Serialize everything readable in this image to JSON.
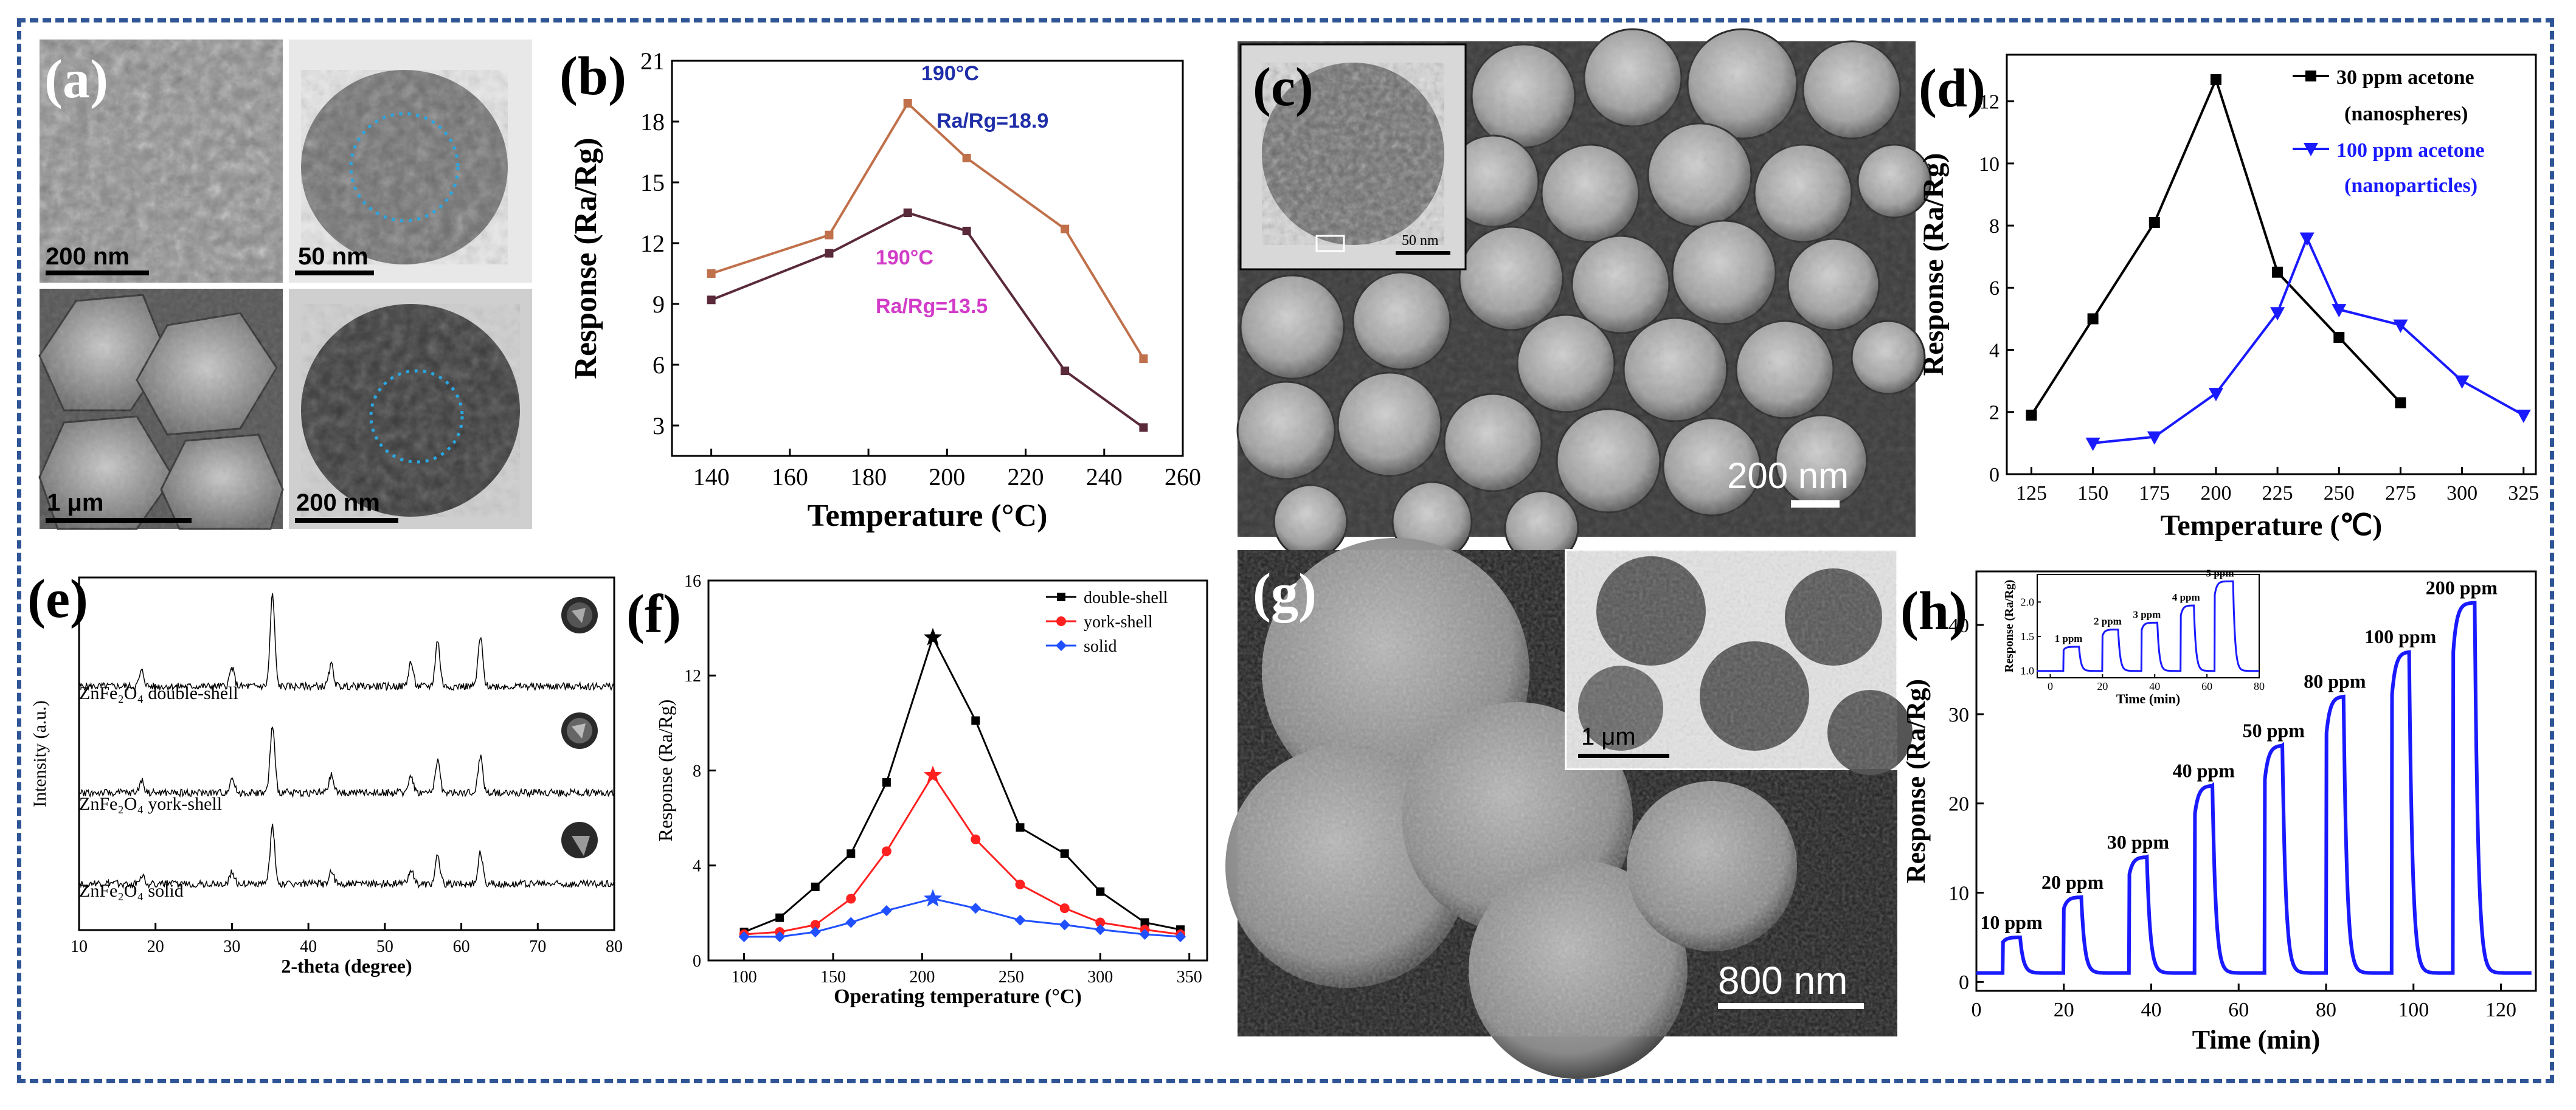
{
  "figure": {
    "frame_color": "#2f5597"
  },
  "panel_a": {
    "label": "(a)",
    "scalebars": [
      "200 nm",
      "50 nm",
      "1 μm",
      "200 nm"
    ]
  },
  "panel_b": {
    "label": "(b)",
    "annotations": [
      "190°C",
      "Ra/Rg=18.9",
      "190°C",
      "Ra/Rg=13.5"
    ]
  },
  "panel_c": {
    "label": "(c)",
    "scalebars": [
      "50 nm",
      "200 nm"
    ]
  },
  "panel_d": {
    "label": "(d)",
    "legend": [
      "30 ppm acetone",
      "(nanospheres)",
      "100 ppm acetone",
      "(nanoparticles)"
    ]
  },
  "panel_e": {
    "label": "(e)",
    "curve_labels": [
      "ZnFe₂O₄ double-shell",
      "ZnFe₂O₄ york-shell",
      "ZnFe₂O₄ solid"
    ]
  },
  "panel_f": {
    "label": "(f)"
  },
  "panel_g": {
    "label": "(g)",
    "scalebars": [
      "1 μm",
      "800 nm"
    ]
  },
  "panel_h": {
    "label": "(h)",
    "step_labels": [
      "10 ppm",
      "20 ppm",
      "30 ppm",
      "40 ppm",
      "50 ppm",
      "80 ppm",
      "100 ppm",
      "200 ppm"
    ],
    "inset": {
      "ylabel": "Response (Ra/Rg)",
      "xlabel": "Time (min)",
      "step_labels": [
        "1 ppm",
        "2 ppm",
        "3 ppm",
        "4 ppm",
        "5 ppm"
      ],
      "xticks": [
        "0",
        "20",
        "40",
        "60",
        "80"
      ],
      "yticks": [
        "1.0",
        "1.5",
        "2.0"
      ]
    }
  },
  "chart_data": [
    {
      "id": "b",
      "type": "line",
      "xlabel": "Temperature (°C)",
      "ylabel": "Response (Ra/Rg)",
      "xlim": [
        130,
        260
      ],
      "ylim": [
        1.5,
        21
      ],
      "xticks": [
        140,
        160,
        180,
        200,
        220,
        240,
        260
      ],
      "yticks": [
        3,
        6,
        9,
        12,
        15,
        18,
        21
      ],
      "series": [
        {
          "color": "#c0704a",
          "x": [
            140,
            170,
            190,
            205,
            230,
            250
          ],
          "y": [
            10.5,
            12.4,
            18.9,
            16.2,
            12.7,
            6.3
          ]
        },
        {
          "color": "#5a2a3a",
          "x": [
            140,
            170,
            190,
            205,
            230,
            250
          ],
          "y": [
            9.2,
            11.5,
            13.5,
            12.6,
            5.7,
            2.9
          ]
        }
      ],
      "grid": false
    },
    {
      "id": "d",
      "type": "line",
      "xlabel": "Temperature (℃)",
      "ylabel": "Response (Ra/Rg)",
      "xlim": [
        115,
        330
      ],
      "ylim": [
        0,
        13.5
      ],
      "xticks": [
        125,
        150,
        175,
        200,
        225,
        250,
        275,
        300,
        325
      ],
      "yticks": [
        0,
        2,
        4,
        6,
        8,
        10,
        12
      ],
      "series": [
        {
          "name": "30 ppm acetone (nanospheres)",
          "color": "#000000",
          "marker": "square",
          "x": [
            125,
            150,
            175,
            200,
            225,
            250,
            275
          ],
          "y": [
            1.9,
            5.0,
            8.1,
            12.7,
            6.5,
            4.4,
            2.3
          ]
        },
        {
          "name": "100 ppm acetone (nanoparticles)",
          "color": "#1a1aff",
          "marker": "triangle-down",
          "x": [
            150,
            175,
            200,
            225,
            237,
            250,
            275,
            300,
            325
          ],
          "y": [
            1.0,
            1.2,
            2.6,
            5.2,
            7.6,
            5.3,
            4.8,
            3.0,
            1.9
          ]
        }
      ],
      "grid": false
    },
    {
      "id": "e",
      "type": "line",
      "xlabel": "2-theta (degree)",
      "ylabel": "Intensity (a.u.)",
      "xlim": [
        10,
        80
      ],
      "xticks": [
        10,
        20,
        30,
        40,
        50,
        60,
        70,
        80
      ],
      "peaks": [
        18.2,
        30.0,
        35.3,
        43.0,
        53.4,
        56.9,
        62.5
      ],
      "series": [
        {
          "name": "ZnFe₂O₄ double-shell"
        },
        {
          "name": "ZnFe₂O₄ york-shell"
        },
        {
          "name": "ZnFe₂O₄ solid"
        }
      ],
      "grid": false
    },
    {
      "id": "f",
      "type": "line",
      "xlabel": "Operating temperature (°C)",
      "ylabel": "Response (Ra/Rg)",
      "xlim": [
        80,
        360
      ],
      "ylim": [
        0,
        16
      ],
      "xticks": [
        100,
        150,
        200,
        250,
        300,
        350
      ],
      "yticks": [
        0,
        4,
        8,
        12,
        16
      ],
      "legend_position": "top-right",
      "series": [
        {
          "name": "double-shell",
          "color": "#000000",
          "x": [
            100,
            120,
            140,
            160,
            180,
            206,
            230,
            255,
            280,
            300,
            325,
            345
          ],
          "y": [
            1.2,
            1.8,
            3.1,
            4.5,
            7.5,
            13.6,
            10.1,
            5.6,
            4.5,
            2.9,
            1.6,
            1.3
          ]
        },
        {
          "name": "york-shell",
          "color": "#ff2020",
          "x": [
            100,
            120,
            140,
            160,
            180,
            206,
            230,
            255,
            280,
            300,
            325,
            345
          ],
          "y": [
            1.1,
            1.2,
            1.5,
            2.6,
            4.6,
            7.8,
            5.1,
            3.2,
            2.2,
            1.6,
            1.3,
            1.1
          ]
        },
        {
          "name": "solid",
          "color": "#2050ff",
          "x": [
            100,
            120,
            140,
            160,
            180,
            206,
            230,
            255,
            280,
            300,
            325,
            345
          ],
          "y": [
            1.0,
            1.0,
            1.2,
            1.6,
            2.1,
            2.6,
            2.2,
            1.7,
            1.5,
            1.3,
            1.1,
            1.0
          ]
        }
      ],
      "grid": false
    },
    {
      "id": "h",
      "type": "line",
      "xlabel": "Time (min)",
      "ylabel": "Response (Ra/Rg)",
      "xlim": [
        0,
        128
      ],
      "ylim": [
        -1,
        46
      ],
      "xticks": [
        0,
        20,
        40,
        60,
        80,
        100,
        120
      ],
      "yticks": [
        0,
        10,
        20,
        30,
        40
      ],
      "color": "#1a1aff",
      "pulses": [
        {
          "start": 6,
          "end": 10,
          "peak": 5,
          "label": "10 ppm"
        },
        {
          "start": 20,
          "end": 24,
          "peak": 9.5,
          "label": "20 ppm"
        },
        {
          "start": 35,
          "end": 39,
          "peak": 14,
          "label": "30 ppm"
        },
        {
          "start": 50,
          "end": 54,
          "peak": 22,
          "label": "40 ppm"
        },
        {
          "start": 66,
          "end": 70,
          "peak": 26.5,
          "label": "50 ppm"
        },
        {
          "start": 80,
          "end": 84,
          "peak": 32,
          "label": "80 ppm"
        },
        {
          "start": 95,
          "end": 99,
          "peak": 37,
          "label": "100 ppm"
        },
        {
          "start": 109,
          "end": 114,
          "peak": 42.5,
          "label": "200 ppm"
        }
      ],
      "inset_pulses": [
        {
          "start": 5,
          "end": 11,
          "peak": 1.35,
          "label": "1 ppm"
        },
        {
          "start": 20,
          "end": 26,
          "peak": 1.6,
          "label": "2 ppm"
        },
        {
          "start": 35,
          "end": 41,
          "peak": 1.7,
          "label": "3 ppm"
        },
        {
          "start": 50,
          "end": 55,
          "peak": 1.95,
          "label": "4 ppm"
        },
        {
          "start": 63,
          "end": 70,
          "peak": 2.3,
          "label": "5 ppm"
        }
      ]
    }
  ]
}
